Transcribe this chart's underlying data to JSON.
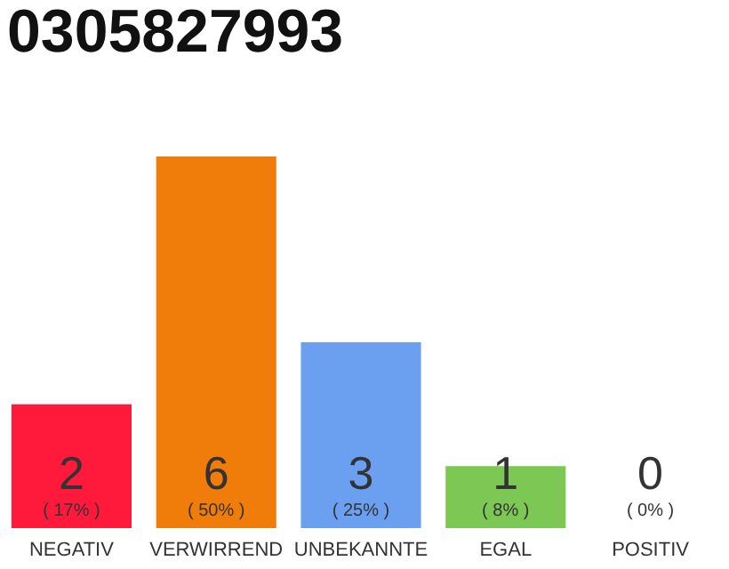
{
  "chart_data": {
    "type": "bar",
    "title": "0305827993",
    "categories": [
      "NEGATIV",
      "VERWIRREND",
      "UNBEKANNTE",
      "EGAL",
      "POSITIV"
    ],
    "values": [
      2,
      6,
      3,
      1,
      0
    ],
    "colors": [
      "#ff1a3c",
      "#f07d0a",
      "#6aa0ef",
      "#7dc855",
      "#cccccc"
    ],
    "data_labels": true,
    "annotations": [
      "( 17% )",
      "( 50% )",
      "( 25% )",
      "( 8% )",
      "( 0% )"
    ],
    "legend": false
  }
}
